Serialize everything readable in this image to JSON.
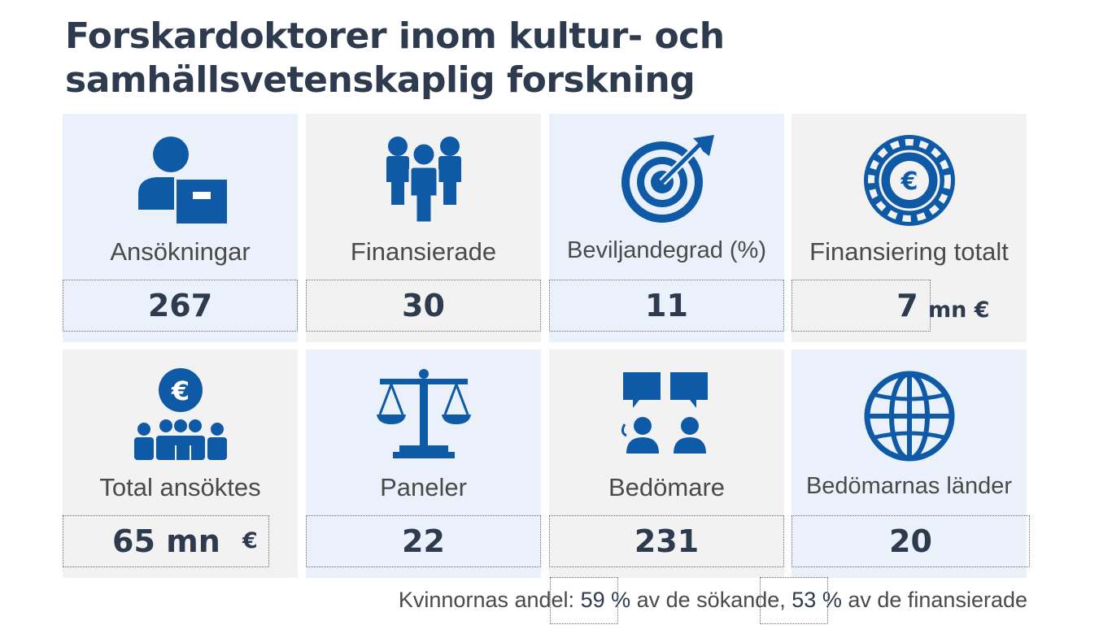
{
  "title_line1": "Forskardoktorer inom kultur- och",
  "title_line2": "samhällsvetenskaplig forskning",
  "tiles": [
    {
      "label": "Ansökningar",
      "value": "267",
      "unit": "",
      "icon": "applicant-icon"
    },
    {
      "label": "Finansierade",
      "value": "30",
      "unit": "",
      "icon": "people-group-icon"
    },
    {
      "label": "Beviljandegrad (%)",
      "value": "11",
      "unit": "",
      "icon": "target-icon"
    },
    {
      "label": "Finansiering totalt",
      "value": "7",
      "unit": "mn €",
      "icon": "euro-coin-icon"
    },
    {
      "label": "Total ansöktes",
      "value": "65 mn",
      "unit": "€",
      "icon": "euro-people-icon"
    },
    {
      "label": "Paneler",
      "value": "22",
      "unit": "",
      "icon": "scales-icon"
    },
    {
      "label": "Bedömare",
      "value": "231",
      "unit": "",
      "icon": "reviewers-icon"
    },
    {
      "label": "Bedömarnas länder",
      "value": "20",
      "unit": "",
      "icon": "globe-icon"
    }
  ],
  "footer": {
    "prefix": "Kvinnornas andel:",
    "pct1": "59 %",
    "mid": "av de sökande,",
    "pct2": "53 %",
    "suffix": "av de finansierade"
  },
  "colors": {
    "icon_blue": "#0f5aa6",
    "title": "#2e3a4e",
    "tile_blue": "#eaf1fb",
    "tile_gray": "#f2f2f2"
  }
}
